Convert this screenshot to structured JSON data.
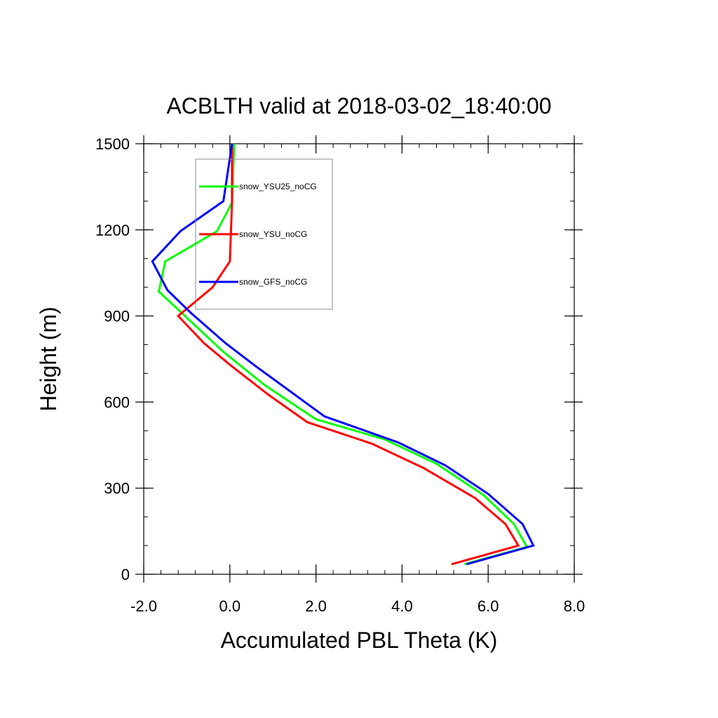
{
  "chart_data": {
    "type": "line",
    "title": "ACBLTH valid at 2018-03-02_18:40:00",
    "xlabel": "Accumulated PBL Theta (K)",
    "ylabel": "Height (m)",
    "xlim": [
      -2.0,
      8.0
    ],
    "ylim": [
      0,
      1500
    ],
    "x_ticks": [
      "-2.0",
      "0.0",
      "2.0",
      "4.0",
      "6.0",
      "8.0"
    ],
    "y_ticks": [
      "0",
      "300",
      "600",
      "900",
      "1200",
      "1500"
    ],
    "legend_placement": "inside top-left",
    "grid": false,
    "series": [
      {
        "name": "snow_YSU25_noCG",
        "color": "#00ff00",
        "points": [
          [
            5.45,
            35
          ],
          [
            6.9,
            95
          ],
          [
            6.6,
            175
          ],
          [
            5.9,
            275
          ],
          [
            4.8,
            385
          ],
          [
            3.6,
            470
          ],
          [
            2.0,
            540
          ],
          [
            0.8,
            660
          ],
          [
            -0.15,
            775
          ],
          [
            -0.9,
            880
          ],
          [
            -1.65,
            985
          ],
          [
            -1.5,
            1090
          ],
          [
            -0.3,
            1195
          ],
          [
            0.05,
            1295
          ],
          [
            0.1,
            1500
          ]
        ]
      },
      {
        "name": "snow_YSU_noCG",
        "color": "#ff0000",
        "points": [
          [
            5.15,
            35
          ],
          [
            6.7,
            100
          ],
          [
            6.4,
            175
          ],
          [
            5.7,
            265
          ],
          [
            4.5,
            370
          ],
          [
            3.3,
            455
          ],
          [
            1.8,
            530
          ],
          [
            0.9,
            625
          ],
          [
            0.0,
            730
          ],
          [
            -0.6,
            805
          ],
          [
            -1.2,
            900
          ],
          [
            -0.4,
            1000
          ],
          [
            0.0,
            1090
          ],
          [
            0.05,
            1295
          ],
          [
            0.05,
            1500
          ]
        ]
      },
      {
        "name": "snow_GFS_noCG",
        "color": "#0000ff",
        "points": [
          [
            5.5,
            35
          ],
          [
            7.05,
            100
          ],
          [
            6.8,
            175
          ],
          [
            6.0,
            280
          ],
          [
            5.0,
            380
          ],
          [
            3.9,
            460
          ],
          [
            2.2,
            550
          ],
          [
            0.6,
            725
          ],
          [
            -0.1,
            805
          ],
          [
            -0.9,
            910
          ],
          [
            -1.45,
            990
          ],
          [
            -1.8,
            1090
          ],
          [
            -1.15,
            1195
          ],
          [
            -0.15,
            1300
          ],
          [
            0.05,
            1500
          ]
        ]
      }
    ]
  }
}
